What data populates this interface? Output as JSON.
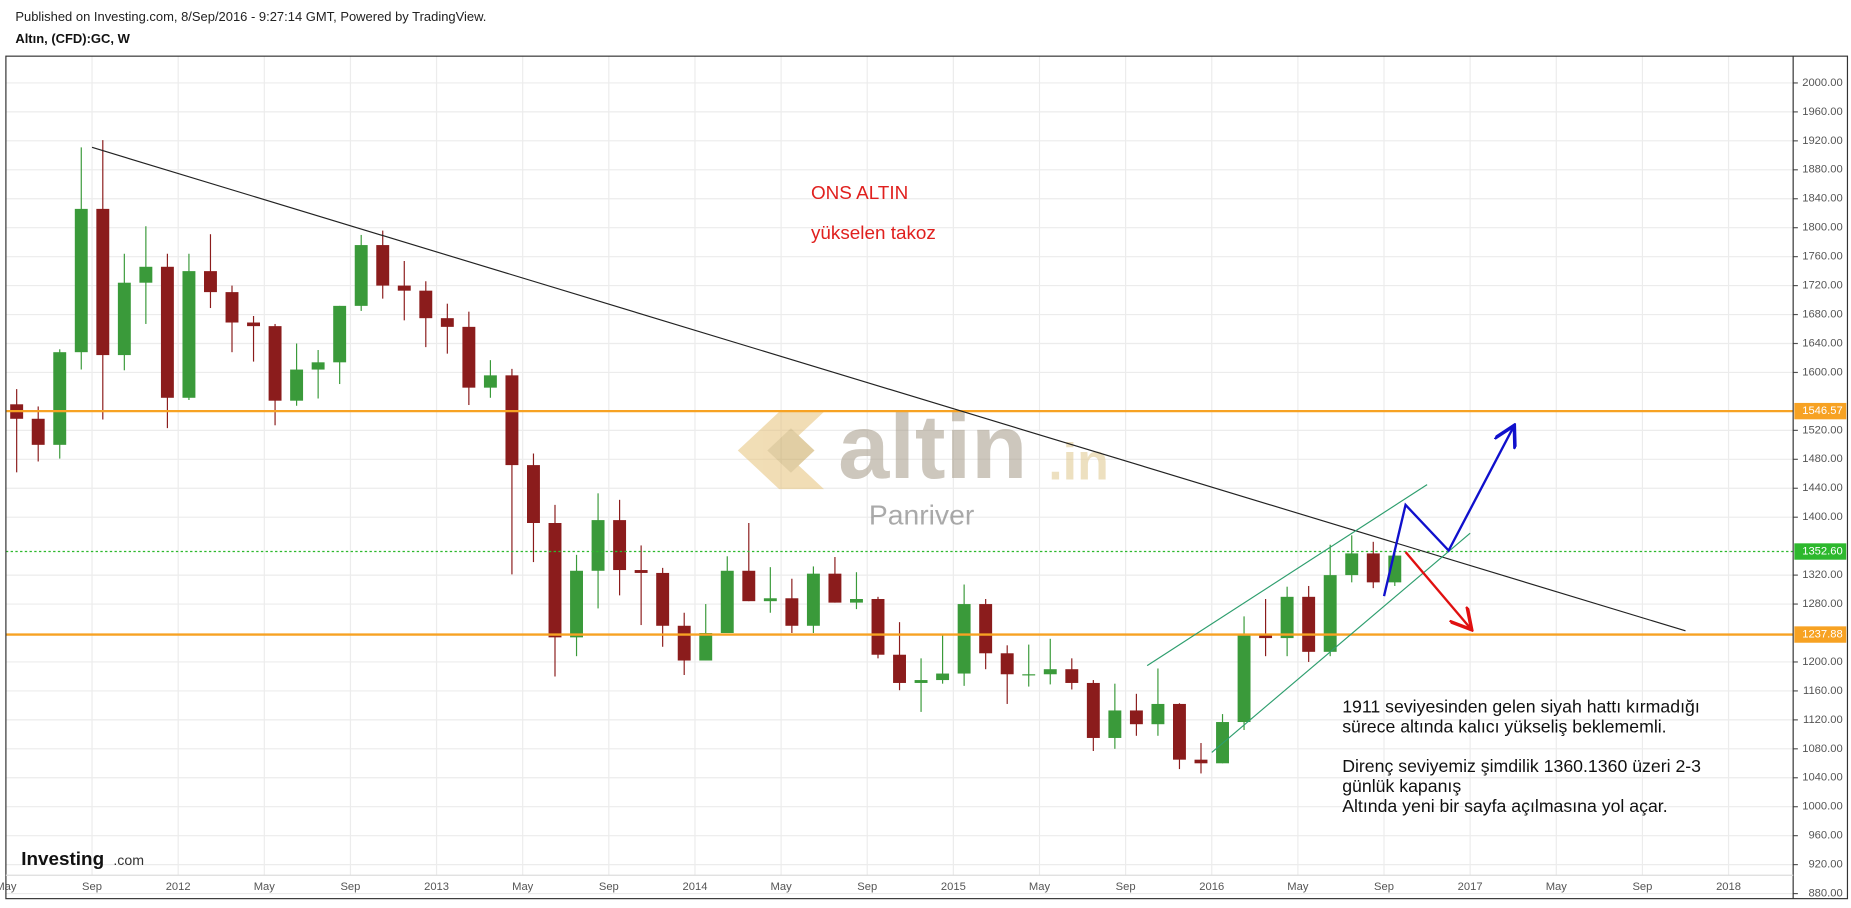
{
  "header": {
    "published": "Published on Investing.com, 8/Sep/2016 - 9:27:14 GMT, Powered by TradingView.",
    "symbol": "Altın, (CFD):GC, W"
  },
  "watermark": {
    "brand": "altin",
    "tld": ".in",
    "author": "Panriver"
  },
  "logo": {
    "brand": "Investing",
    "suffix": ".com"
  },
  "chart_data": {
    "type": "candlestick",
    "colors": {
      "up": "#3a9a3a",
      "down": "#8b1c1c"
    },
    "grid": true,
    "x": [
      "2011-05",
      "2011-06",
      "2011-07",
      "2011-08",
      "2011-09",
      "2011-10",
      "2011-11",
      "2011-12",
      "2012-01",
      "2012-02",
      "2012-03",
      "2012-04",
      "2012-05",
      "2012-06",
      "2012-07",
      "2012-08",
      "2012-09",
      "2012-10",
      "2012-11",
      "2012-12",
      "2013-01",
      "2013-02",
      "2013-03",
      "2013-04",
      "2013-05",
      "2013-06",
      "2013-07",
      "2013-08",
      "2013-09",
      "2013-10",
      "2013-11",
      "2013-12",
      "2014-01",
      "2014-02",
      "2014-03",
      "2014-04",
      "2014-05",
      "2014-06",
      "2014-07",
      "2014-08",
      "2014-09",
      "2014-10",
      "2014-11",
      "2014-12",
      "2015-01",
      "2015-02",
      "2015-03",
      "2015-04",
      "2015-05",
      "2015-06",
      "2015-07",
      "2015-08",
      "2015-09",
      "2015-10",
      "2015-11",
      "2015-12",
      "2016-01",
      "2016-02",
      "2016-03",
      "2016-04",
      "2016-05",
      "2016-06",
      "2016-07",
      "2016-08",
      "2016-09"
    ],
    "open": [
      1556,
      1536,
      1500,
      1628,
      1826,
      1624,
      1724,
      1746,
      1565,
      1740,
      1711,
      1669,
      1664,
      1561,
      1604,
      1614,
      1692,
      1776,
      1720,
      1713,
      1675,
      1663,
      1579,
      1596,
      1472,
      1392,
      1234,
      1326,
      1396,
      1327,
      1323,
      1250,
      1202,
      1240,
      1326,
      1284,
      1288,
      1250,
      1322,
      1282,
      1287,
      1210,
      1171,
      1175,
      1184,
      1280,
      1212,
      1183,
      1183,
      1190,
      1171,
      1095,
      1133,
      1114,
      1142,
      1065,
      1060,
      1117,
      1238,
      1233,
      1290,
      1214,
      1320,
      1350,
      1310
    ],
    "high": [
      1577,
      1553,
      1632,
      1911,
      1921,
      1764,
      1802,
      1764,
      1764,
      1791,
      1720,
      1678,
      1667,
      1640,
      1631,
      1692,
      1790,
      1796,
      1754,
      1726,
      1695,
      1684,
      1617,
      1605,
      1488,
      1417,
      1348,
      1433,
      1424,
      1361,
      1330,
      1268,
      1280,
      1346,
      1392,
      1331,
      1315,
      1332,
      1345,
      1324,
      1290,
      1255,
      1205,
      1238,
      1307,
      1287,
      1223,
      1224,
      1232,
      1205,
      1175,
      1170,
      1156,
      1191,
      1143,
      1088,
      1128,
      1263,
      1287,
      1304,
      1305,
      1362,
      1375,
      1366,
      1352
    ],
    "low": [
      1462,
      1477,
      1481,
      1604,
      1535,
      1603,
      1667,
      1523,
      1562,
      1689,
      1628,
      1615,
      1527,
      1554,
      1564,
      1584,
      1685,
      1702,
      1672,
      1635,
      1626,
      1555,
      1565,
      1321,
      1338,
      1180,
      1208,
      1274,
      1292,
      1251,
      1221,
      1182,
      1202,
      1240,
      1284,
      1268,
      1240,
      1240,
      1282,
      1273,
      1205,
      1161,
      1131,
      1170,
      1167,
      1190,
      1142,
      1166,
      1169,
      1162,
      1077,
      1080,
      1098,
      1098,
      1052,
      1046,
      1060,
      1106,
      1208,
      1208,
      1200,
      1208,
      1310,
      1302,
      1305
    ],
    "close": [
      1536,
      1500,
      1628,
      1826,
      1624,
      1724,
      1746,
      1565,
      1740,
      1711,
      1669,
      1664,
      1561,
      1604,
      1614,
      1692,
      1776,
      1720,
      1713,
      1675,
      1663,
      1579,
      1596,
      1472,
      1392,
      1234,
      1326,
      1396,
      1327,
      1323,
      1250,
      1202,
      1240,
      1326,
      1284,
      1288,
      1250,
      1322,
      1282,
      1287,
      1210,
      1171,
      1175,
      1184,
      1280,
      1212,
      1183,
      1183,
      1190,
      1171,
      1095,
      1133,
      1114,
      1142,
      1065,
      1060,
      1117,
      1238,
      1233,
      1290,
      1214,
      1320,
      1350,
      1310,
      1347
    ],
    "xlim": [
      "2011-05",
      "2018-04"
    ],
    "xticks": [
      {
        "value": "2011-05",
        "label": "May"
      },
      {
        "value": "2011-09",
        "label": "Sep"
      },
      {
        "value": "2012-01",
        "label": "2012"
      },
      {
        "value": "2012-05",
        "label": "May"
      },
      {
        "value": "2012-09",
        "label": "Sep"
      },
      {
        "value": "2013-01",
        "label": "2013"
      },
      {
        "value": "2013-05",
        "label": "May"
      },
      {
        "value": "2013-09",
        "label": "Sep"
      },
      {
        "value": "2014-01",
        "label": "2014"
      },
      {
        "value": "2014-05",
        "label": "May"
      },
      {
        "value": "2014-09",
        "label": "Sep"
      },
      {
        "value": "2015-01",
        "label": "2015"
      },
      {
        "value": "2015-05",
        "label": "May"
      },
      {
        "value": "2015-09",
        "label": "Sep"
      },
      {
        "value": "2016-01",
        "label": "2016"
      },
      {
        "value": "2016-05",
        "label": "May"
      },
      {
        "value": "2016-09",
        "label": "Sep"
      },
      {
        "value": "2017-01",
        "label": "2017"
      },
      {
        "value": "2017-05",
        "label": "May"
      },
      {
        "value": "2017-09",
        "label": "Sep"
      },
      {
        "value": "2018-01",
        "label": "2018"
      }
    ],
    "ylim": [
      873,
      2037
    ],
    "yticks": [
      {
        "value": 880,
        "label": "880.00"
      },
      {
        "value": 920,
        "label": "920.00"
      },
      {
        "value": 960,
        "label": "960.00"
      },
      {
        "value": 1000,
        "label": "1000.00"
      },
      {
        "value": 1040,
        "label": "1040.00"
      },
      {
        "value": 1080,
        "label": "1080.00"
      },
      {
        "value": 1120,
        "label": "1120.00"
      },
      {
        "value": 1160,
        "label": "1160.00"
      },
      {
        "value": 1200,
        "label": "1200.00"
      },
      {
        "value": 1280,
        "label": "1280.00"
      },
      {
        "value": 1320,
        "label": "1320.00"
      },
      {
        "value": 1400,
        "label": "1400.00"
      },
      {
        "value": 1440,
        "label": "1440.00"
      },
      {
        "value": 1480,
        "label": "1480.00"
      },
      {
        "value": 1520,
        "label": "1520.00"
      },
      {
        "value": 1600,
        "label": "1600.00"
      },
      {
        "value": 1640,
        "label": "1640.00"
      },
      {
        "value": 1680,
        "label": "1680.00"
      },
      {
        "value": 1720,
        "label": "1720.00"
      },
      {
        "value": 1760,
        "label": "1760.00"
      },
      {
        "value": 1800,
        "label": "1800.00"
      },
      {
        "value": 1840,
        "label": "1840.00"
      },
      {
        "value": 1880,
        "label": "1880.00"
      },
      {
        "value": 1920,
        "label": "1920.00"
      },
      {
        "value": 1960,
        "label": "1960.00"
      },
      {
        "value": 2000,
        "label": "2000.00"
      }
    ],
    "hlines": [
      {
        "value": 1546.57,
        "label": "1546.57",
        "color": "#f7a223",
        "style": "solid"
      },
      {
        "value": 1352.6,
        "label": "1352.60",
        "color": "#2db82d",
        "style": "dotted"
      },
      {
        "value": 1237.88,
        "label": "1237.88",
        "color": "#f7a223",
        "style": "solid"
      }
    ],
    "drawings": [
      {
        "x": [
          "2011-09",
          "2017-11"
        ],
        "y": [
          1911,
          1243
        ],
        "color": "#222222",
        "arrow": false
      },
      {
        "x": [
          "2015-10",
          "2016-11"
        ],
        "y": [
          1195,
          1445
        ],
        "color": "#2e9e6e",
        "arrow": false
      },
      {
        "x": [
          "2016-01",
          "2017-01"
        ],
        "y": [
          1075,
          1378
        ],
        "color": "#2e9e6e",
        "arrow": false
      },
      {
        "x": [
          "2016-09",
          "2016-10",
          "2016-12",
          "2017-03"
        ],
        "y": [
          1291,
          1417,
          1354,
          1524
        ],
        "color": "#1010cc",
        "arrow": true
      },
      {
        "x": [
          "2016-10",
          "2017-01"
        ],
        "y": [
          1352,
          1247
        ],
        "color": "#e01010",
        "arrow": true
      }
    ],
    "annotations": [
      {
        "text": "ONS ALTIN",
        "color": "#e0201e"
      },
      {
        "text": "yükselen takoz",
        "color": "#e0201e"
      }
    ],
    "note": [
      "1911 seviyesinden gelen siyah hattı kırmadığı",
      "sürece altında kalıcı yükseliş beklememli.",
      "Direnç seviyemiz şimdilik 1360.1360 üzeri 2-3",
      "günlük kapanış",
      "Altında yeni bir sayfa açılmasına yol açar."
    ]
  }
}
